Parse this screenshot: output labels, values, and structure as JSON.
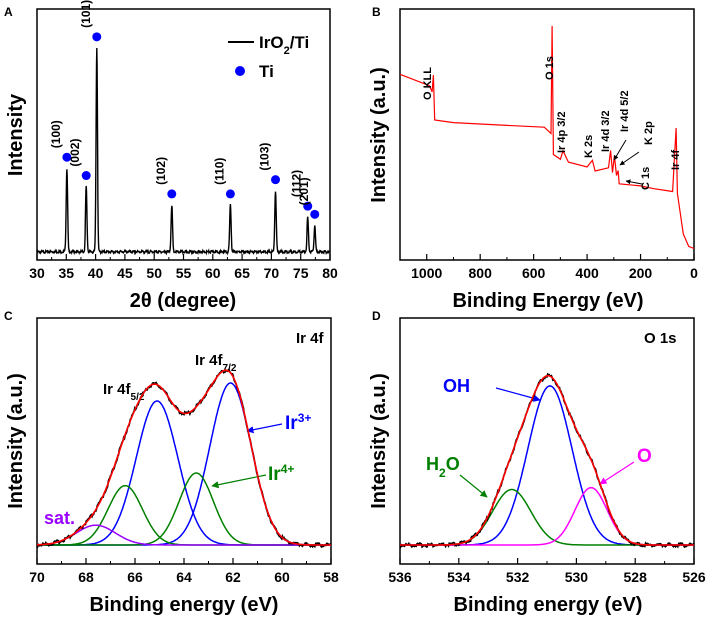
{
  "chart_data": [
    {
      "panel": "A",
      "type": "line",
      "xlabel": "2θ (degree)",
      "ylabel": "Intensity",
      "xlim": [
        30,
        80
      ],
      "xticks": [
        "30",
        "35",
        "40",
        "45",
        "50",
        "55",
        "60",
        "65",
        "70",
        "75",
        "80"
      ],
      "legend": {
        "position": "top-right",
        "entries": [
          {
            "label": "IrO",
            "sub": "2",
            "suffix": "/Ti",
            "style": "line",
            "color": "#000000"
          },
          {
            "label": "Ti",
            "sub": "",
            "suffix": "",
            "style": "marker",
            "color": "#0000ff"
          }
        ]
      },
      "series": [
        {
          "name": "IrO2/Ti",
          "color": "#000000",
          "baseline": 0.04,
          "peaks": [
            {
              "x": 35.1,
              "h": 0.41,
              "label": "(100)"
            },
            {
              "x": 38.4,
              "h": 0.32,
              "label": "(002)"
            },
            {
              "x": 40.2,
              "h": 1.0,
              "label": "(101)"
            },
            {
              "x": 53.0,
              "h": 0.23,
              "label": "(102)"
            },
            {
              "x": 63.0,
              "h": 0.23,
              "label": "(110)"
            },
            {
              "x": 70.7,
              "h": 0.3,
              "label": "(103)"
            },
            {
              "x": 76.2,
              "h": 0.17,
              "label": "(112)"
            },
            {
              "x": 77.4,
              "h": 0.13,
              "label": "(201)"
            }
          ]
        }
      ]
    },
    {
      "panel": "B",
      "type": "line",
      "xlabel": "Binding Energy (eV)",
      "ylabel": "Intensity (a.u.)",
      "xlim": [
        1100,
        0
      ],
      "xticks": [
        "1000",
        "800",
        "600",
        "400",
        "200",
        "0"
      ],
      "series": [
        {
          "name": "survey",
          "color": "#ff0000",
          "points": [
            [
              1100,
              0.74
            ],
            [
              990,
              0.7
            ],
            [
              980,
              0.67
            ],
            [
              975,
              0.74
            ],
            [
              970,
              0.56
            ],
            [
              900,
              0.55
            ],
            [
              700,
              0.54
            ],
            [
              560,
              0.53
            ],
            [
              535,
              0.5
            ],
            [
              531,
              0.93
            ],
            [
              526,
              0.42
            ],
            [
              500,
              0.4
            ],
            [
              490,
              0.43
            ],
            [
              470,
              0.39
            ],
            [
              400,
              0.37
            ],
            [
              380,
              0.4
            ],
            [
              370,
              0.36
            ],
            [
              320,
              0.37
            ],
            [
              312,
              0.44
            ],
            [
              305,
              0.35
            ],
            [
              298,
              0.42
            ],
            [
              290,
              0.34
            ],
            [
              284,
              0.36
            ],
            [
              280,
              0.3
            ],
            [
              200,
              0.29
            ],
            [
              150,
              0.28
            ],
            [
              80,
              0.27
            ],
            [
              67,
              0.52
            ],
            [
              62,
              0.26
            ],
            [
              40,
              0.1
            ],
            [
              20,
              0.06
            ],
            [
              0,
              0.05
            ]
          ]
        }
      ],
      "annotations": [
        {
          "text": "O KLL",
          "x": 970
        },
        {
          "text": "O 1s",
          "x": 531
        },
        {
          "text": "Ir 4p 3/2",
          "x": 496
        },
        {
          "text": "K 2s",
          "x": 380
        },
        {
          "text": "Ir 4d 3/2",
          "x": 312
        },
        {
          "text": "Ir 4d 5/2",
          "x": 298
        },
        {
          "text": "K 2p",
          "x": 295
        },
        {
          "text": "C 1s",
          "x": 284
        },
        {
          "text": "Ir 4f",
          "x": 62
        }
      ]
    },
    {
      "panel": "C",
      "type": "line",
      "title": "Ir 4f",
      "xlabel": "Binding energy (eV)",
      "ylabel": "Intensity (a.u.)",
      "xlim": [
        70,
        58
      ],
      "xticks": [
        "70",
        "68",
        "66",
        "64",
        "62",
        "60",
        "58"
      ],
      "components": [
        {
          "name": "Ir 4f5/2 Ir3+",
          "color": "#0000ff",
          "center": 65.1,
          "amp": 0.8,
          "sigma": 0.85
        },
        {
          "name": "Ir 4f7/2 Ir3+",
          "color": "#0000ff",
          "center": 62.1,
          "amp": 0.9,
          "sigma": 0.85
        },
        {
          "name": "Ir 4f5/2 Ir4+",
          "color": "#008000",
          "center": 66.4,
          "amp": 0.33,
          "sigma": 0.7
        },
        {
          "name": "Ir 4f7/2 Ir4+",
          "color": "#008000",
          "center": 63.5,
          "amp": 0.4,
          "sigma": 0.7
        },
        {
          "name": "sat.",
          "color": "#9a00ff",
          "center": 67.6,
          "amp": 0.11,
          "sigma": 0.8
        }
      ],
      "envelope_color": "#ff0000",
      "data_color": "#000000",
      "labels": {
        "title": "Ir 4f",
        "peak_5_2": {
          "text": "Ir 4f",
          "sub": "5/2"
        },
        "peak_7_2": {
          "text": "Ir 4f",
          "sub": "7/2"
        },
        "ir3": {
          "text": "Ir",
          "sup": "3+"
        },
        "ir4": {
          "text": "Ir",
          "sup": "4+"
        },
        "sat": "sat."
      }
    },
    {
      "panel": "D",
      "type": "line",
      "title": "O 1s",
      "xlabel": "Binding energy (eV)",
      "ylabel": "Intensity (a.u.)",
      "xlim": [
        536,
        526
      ],
      "xticks": [
        "536",
        "534",
        "532",
        "530",
        "528",
        "526"
      ],
      "components": [
        {
          "name": "OH",
          "color": "#0000ff",
          "center": 530.9,
          "amp": 0.86,
          "sigma": 0.75
        },
        {
          "name": "H2O",
          "color": "#008000",
          "center": 532.2,
          "amp": 0.3,
          "sigma": 0.65
        },
        {
          "name": "O",
          "color": "#ff00ff",
          "center": 529.5,
          "amp": 0.31,
          "sigma": 0.55
        }
      ],
      "envelope_color": "#ff0000",
      "data_color": "#000000",
      "labels": {
        "title": "O 1s",
        "oh": "OH",
        "h2o": {
          "text": "H",
          "sub": "2",
          "suffix": "O"
        },
        "o": "O"
      }
    }
  ]
}
